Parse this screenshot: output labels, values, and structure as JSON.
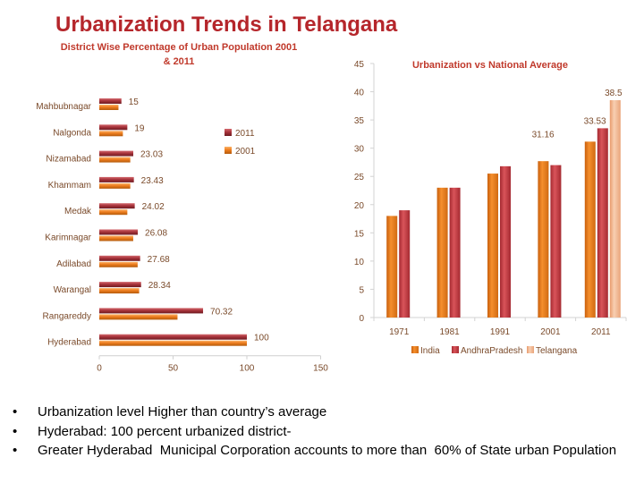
{
  "slide": {
    "title": "Urbanization Trends in Telangana",
    "bullets": [
      "Urbanization level Higher than country’s average",
      "Hyderabad: 100 percent urbanized district-",
      "Greater Hyderabad  Municipal Corporation accounts to more than  60% of State urban Population"
    ]
  },
  "colors": {
    "s2011": "#a8343c",
    "s2001": "#ee7d1e",
    "india": "#ee7d1e",
    "ap": "#c83a40",
    "telangana": "#f2b48f",
    "title": "#b5262b"
  },
  "chart_data": [
    {
      "type": "bar",
      "orientation": "horizontal",
      "title": "District Wise Percentage of Urban Population 2001 & 2011",
      "categories": [
        "Mahbubnagar",
        "Nalgonda",
        "Nizamabad",
        "Khammam",
        "Medak",
        "Karimnagar",
        "Adilabad",
        "Warangal",
        "Rangareddy",
        "Hyderabad"
      ],
      "series": [
        {
          "name": "2011",
          "values": [
            15,
            19,
            23.03,
            23.43,
            24.02,
            26.08,
            27.68,
            28.34,
            70.32,
            100
          ]
        },
        {
          "name": "2001",
          "values": [
            13,
            16,
            21,
            21,
            19,
            23,
            26,
            27,
            53,
            100
          ]
        }
      ],
      "data_labels": [
        "15",
        "19",
        "23.03",
        "23.43",
        "24.02",
        "26.08",
        "27.68",
        "28.34",
        "70.32",
        "100"
      ],
      "xlim": [
        0,
        150
      ],
      "xticks": [
        0,
        50,
        100,
        150
      ],
      "legend": "right"
    },
    {
      "type": "bar",
      "title": "Urbanization vs National Average",
      "categories": [
        "1971",
        "1981",
        "1991",
        "2001",
        "2011"
      ],
      "series": [
        {
          "name": "India",
          "values": [
            18,
            23,
            25.5,
            27.7,
            31.16
          ]
        },
        {
          "name": "AndhraPradesh",
          "values": [
            19,
            23,
            26.8,
            27,
            33.53
          ]
        },
        {
          "name": "Telangana",
          "values": [
            null,
            null,
            null,
            null,
            38.5
          ]
        }
      ],
      "data_labels": {
        "2011": [
          "31.16",
          "33.53",
          "38.5"
        ]
      },
      "ylim": [
        0,
        45
      ],
      "yticks": [
        0,
        5,
        10,
        15,
        20,
        25,
        30,
        35,
        40,
        45
      ],
      "legend": "bottom"
    }
  ]
}
